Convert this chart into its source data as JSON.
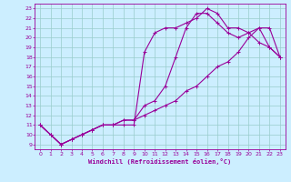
{
  "bg_color": "#cceeff",
  "line_color": "#990099",
  "grid_color": "#99cccc",
  "xlabel": "Windchill (Refroidissement éolien,°C)",
  "xlim": [
    -0.5,
    23.5
  ],
  "ylim": [
    8.5,
    23.5
  ],
  "xticks": [
    0,
    1,
    2,
    3,
    4,
    5,
    6,
    7,
    8,
    9,
    10,
    11,
    12,
    13,
    14,
    15,
    16,
    17,
    18,
    19,
    20,
    21,
    22,
    23
  ],
  "yticks": [
    9,
    10,
    11,
    12,
    13,
    14,
    15,
    16,
    17,
    18,
    19,
    20,
    21,
    22,
    23
  ],
  "line1_x": [
    0,
    1,
    2,
    3,
    4,
    5,
    6,
    7,
    8,
    9,
    10,
    11,
    12,
    13,
    14,
    15,
    16,
    17,
    18,
    19,
    20,
    21,
    22,
    23
  ],
  "line1_y": [
    11.0,
    10.0,
    9.0,
    9.5,
    10.0,
    10.5,
    11.0,
    11.0,
    11.0,
    11.0,
    18.5,
    20.5,
    21.0,
    21.0,
    21.5,
    22.0,
    23.0,
    22.5,
    21.0,
    21.0,
    20.5,
    21.0,
    19.0,
    18.0
  ],
  "line2_x": [
    0,
    1,
    2,
    3,
    4,
    5,
    6,
    7,
    8,
    9,
    10,
    11,
    12,
    13,
    14,
    15,
    16,
    17,
    18,
    19,
    20,
    21,
    22,
    23
  ],
  "line2_y": [
    11.0,
    10.0,
    9.0,
    9.5,
    10.0,
    10.5,
    11.0,
    11.0,
    11.5,
    11.5,
    13.0,
    13.5,
    15.0,
    18.0,
    21.0,
    22.5,
    22.5,
    21.5,
    20.5,
    20.0,
    20.5,
    19.5,
    19.0,
    18.0
  ],
  "line3_x": [
    0,
    1,
    2,
    3,
    4,
    5,
    6,
    7,
    8,
    9,
    10,
    11,
    12,
    13,
    14,
    15,
    16,
    17,
    18,
    19,
    20,
    21,
    22,
    23
  ],
  "line3_y": [
    11.0,
    10.0,
    9.0,
    9.5,
    10.0,
    10.5,
    11.0,
    11.0,
    11.5,
    11.5,
    12.0,
    12.5,
    13.0,
    13.5,
    14.5,
    15.0,
    16.0,
    17.0,
    17.5,
    18.5,
    20.0,
    21.0,
    21.0,
    18.0
  ]
}
